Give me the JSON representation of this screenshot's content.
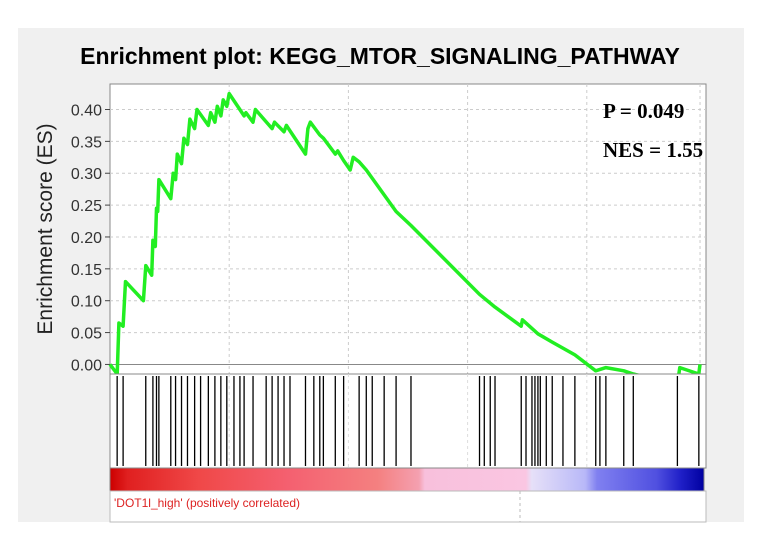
{
  "chart_data": {
    "type": "line",
    "title": "Enrichment plot: KEGG_MTOR_SIGNALING_PATHWAY",
    "ylabel": "Enrichment score (ES)",
    "xlabel": "",
    "ylim": [
      -0.015,
      0.44
    ],
    "yticks": [
      "0.00",
      "0.05",
      "0.10",
      "0.15",
      "0.20",
      "0.25",
      "0.30",
      "0.35",
      "0.40"
    ],
    "grid": true,
    "line_color": "#22ee22",
    "annotations": {
      "p_value": "P = 0.049",
      "nes": "NES = 1.55"
    },
    "phenotype_label": "'DOT1l_high' (positively correlated)",
    "phenotype_label_color": "#dd2222",
    "hit_positions": [
      0.012,
      0.022,
      0.06,
      0.072,
      0.078,
      0.082,
      0.102,
      0.11,
      0.12,
      0.13,
      0.142,
      0.152,
      0.165,
      0.176,
      0.186,
      0.196,
      0.208,
      0.218,
      0.225,
      0.24,
      0.262,
      0.272,
      0.282,
      0.292,
      0.302,
      0.328,
      0.342,
      0.352,
      0.358,
      0.378,
      0.392,
      0.418,
      0.43,
      0.44,
      0.46,
      0.48,
      0.505,
      0.62,
      0.628,
      0.638,
      0.646,
      0.69,
      0.698,
      0.708,
      0.713,
      0.718,
      0.722,
      0.732,
      0.742,
      0.76,
      0.78,
      0.815,
      0.822,
      0.832,
      0.862,
      0.878,
      0.952,
      0.988
    ],
    "es_curve": [
      [
        0.0,
        0.0
      ],
      [
        0.012,
        -0.015
      ],
      [
        0.015,
        0.065
      ],
      [
        0.022,
        0.06
      ],
      [
        0.026,
        0.13
      ],
      [
        0.056,
        0.1
      ],
      [
        0.06,
        0.155
      ],
      [
        0.07,
        0.14
      ],
      [
        0.072,
        0.195
      ],
      [
        0.076,
        0.185
      ],
      [
        0.078,
        0.245
      ],
      [
        0.08,
        0.24
      ],
      [
        0.082,
        0.29
      ],
      [
        0.102,
        0.26
      ],
      [
        0.106,
        0.3
      ],
      [
        0.11,
        0.29
      ],
      [
        0.113,
        0.33
      ],
      [
        0.12,
        0.315
      ],
      [
        0.124,
        0.355
      ],
      [
        0.13,
        0.345
      ],
      [
        0.134,
        0.385
      ],
      [
        0.142,
        0.37
      ],
      [
        0.146,
        0.4
      ],
      [
        0.165,
        0.375
      ],
      [
        0.169,
        0.395
      ],
      [
        0.176,
        0.38
      ],
      [
        0.18,
        0.405
      ],
      [
        0.186,
        0.39
      ],
      [
        0.19,
        0.415
      ],
      [
        0.196,
        0.405
      ],
      [
        0.2,
        0.425
      ],
      [
        0.225,
        0.39
      ],
      [
        0.228,
        0.395
      ],
      [
        0.24,
        0.38
      ],
      [
        0.244,
        0.4
      ],
      [
        0.272,
        0.37
      ],
      [
        0.276,
        0.38
      ],
      [
        0.292,
        0.365
      ],
      [
        0.296,
        0.375
      ],
      [
        0.328,
        0.33
      ],
      [
        0.332,
        0.37
      ],
      [
        0.336,
        0.38
      ],
      [
        0.352,
        0.36
      ],
      [
        0.358,
        0.355
      ],
      [
        0.378,
        0.33
      ],
      [
        0.382,
        0.335
      ],
      [
        0.392,
        0.32
      ],
      [
        0.403,
        0.305
      ],
      [
        0.408,
        0.325
      ],
      [
        0.418,
        0.318
      ],
      [
        0.43,
        0.305
      ],
      [
        0.48,
        0.24
      ],
      [
        0.505,
        0.218
      ],
      [
        0.62,
        0.11
      ],
      [
        0.646,
        0.09
      ],
      [
        0.69,
        0.06
      ],
      [
        0.692,
        0.07
      ],
      [
        0.718,
        0.048
      ],
      [
        0.742,
        0.035
      ],
      [
        0.78,
        0.015
      ],
      [
        0.815,
        -0.01
      ],
      [
        0.832,
        -0.005
      ],
      [
        0.862,
        -0.01
      ],
      [
        0.878,
        -0.015
      ],
      [
        0.952,
        -0.03
      ],
      [
        0.956,
        -0.005
      ],
      [
        0.988,
        -0.015
      ],
      [
        0.99,
        0.0
      ]
    ]
  }
}
